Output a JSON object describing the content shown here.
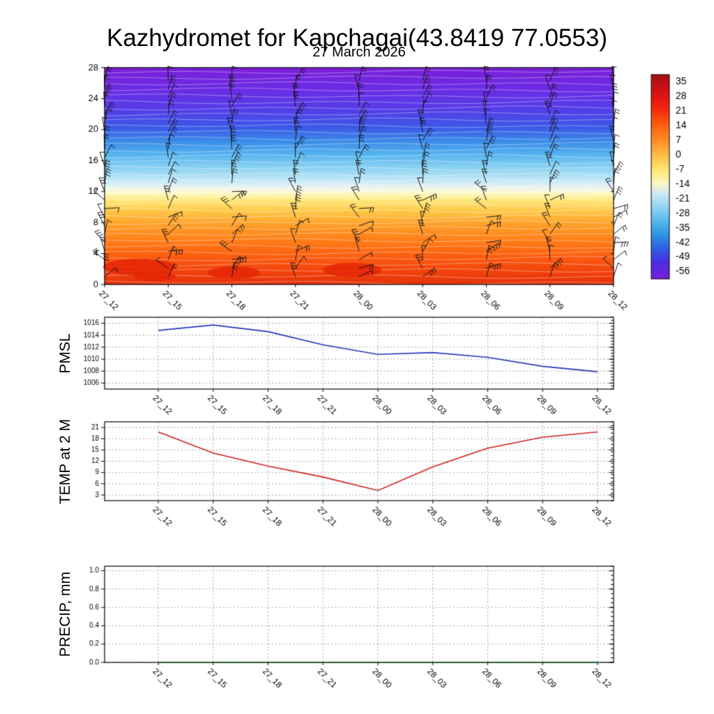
{
  "title": "Kazhydromet for Kapchagai(43.8419 77.0553)",
  "subtitle": "27 March 2026",
  "time_labels": [
    "27_12",
    "27_15",
    "27_18",
    "27_21",
    "28_00",
    "28_03",
    "28_06",
    "28_09",
    "28_12"
  ],
  "style": {
    "axis_color": "#000000",
    "grid_color": "#999999",
    "contour_color": "rgba(255,255,255,0.55)",
    "barb_color": "#111111"
  },
  "chart_data": [
    {
      "type": "heatmap",
      "name": "upper-air-temperature-section",
      "title": "27 March 2026",
      "xlabel": "",
      "ylabel": "",
      "ylim": [
        0,
        28
      ],
      "yticks": [
        0,
        4,
        8,
        12,
        16,
        20,
        24,
        28
      ],
      "x_categories": [
        "27_12",
        "27_15",
        "27_18",
        "27_21",
        "28_00",
        "28_03",
        "28_06",
        "28_09",
        "28_12"
      ],
      "field_description": "Time-height temperature section with wind barbs at each time step: warm orange/red layer below ~11, pale yellow band near 12, light blue ~13-17, blue ~17-20, purple above ~21; small red warm cores near the surface.",
      "field_gradient": [
        {
          "pos": 0.0,
          "color": "#7c1fd8"
        },
        {
          "pos": 0.1,
          "color": "#6b2ce4"
        },
        {
          "pos": 0.2,
          "color": "#5340e8"
        },
        {
          "pos": 0.28,
          "color": "#3a5ce8"
        },
        {
          "pos": 0.34,
          "color": "#3b8ce8"
        },
        {
          "pos": 0.4,
          "color": "#55b4ee"
        },
        {
          "pos": 0.46,
          "color": "#8ad2f2"
        },
        {
          "pos": 0.52,
          "color": "#c2e8f8"
        },
        {
          "pos": 0.555,
          "color": "#eef6f0"
        },
        {
          "pos": 0.575,
          "color": "#fdfbd0"
        },
        {
          "pos": 0.61,
          "color": "#ffe97e"
        },
        {
          "pos": 0.66,
          "color": "#ffc94a"
        },
        {
          "pos": 0.72,
          "color": "#ffa22b"
        },
        {
          "pos": 0.8,
          "color": "#ff7d18"
        },
        {
          "pos": 0.88,
          "color": "#fb5a10"
        },
        {
          "pos": 0.95,
          "color": "#f0400c"
        },
        {
          "pos": 1.0,
          "color": "#e5320a"
        }
      ],
      "colorbar": {
        "ticks": [
          35,
          28,
          21,
          14,
          7,
          0,
          -7,
          -14,
          -21,
          -28,
          -35,
          -42,
          -49,
          -56
        ],
        "gradient": [
          {
            "pos": 0.0,
            "color": "#a30f14"
          },
          {
            "pos": 0.08,
            "color": "#d31016"
          },
          {
            "pos": 0.16,
            "color": "#f3230e"
          },
          {
            "pos": 0.24,
            "color": "#ff5a10"
          },
          {
            "pos": 0.32,
            "color": "#ff8c22"
          },
          {
            "pos": 0.4,
            "color": "#ffc04a"
          },
          {
            "pos": 0.47,
            "color": "#ffe878"
          },
          {
            "pos": 0.53,
            "color": "#fbf7c0"
          },
          {
            "pos": 0.58,
            "color": "#cfeaf6"
          },
          {
            "pos": 0.64,
            "color": "#9cd8f2"
          },
          {
            "pos": 0.71,
            "color": "#5cbcec"
          },
          {
            "pos": 0.78,
            "color": "#2f96e2"
          },
          {
            "pos": 0.85,
            "color": "#2e60e2"
          },
          {
            "pos": 0.92,
            "color": "#4a2ee0"
          },
          {
            "pos": 1.0,
            "color": "#7a1fd8"
          }
        ]
      },
      "wind_barbs": true
    },
    {
      "type": "line",
      "name": "pmsl-series",
      "ylabel": "PMSL",
      "x": [
        "27_12",
        "27_15",
        "27_18",
        "27_21",
        "28_00",
        "28_03",
        "28_06",
        "28_09",
        "28_12"
      ],
      "values": [
        1014.8,
        1015.7,
        1014.6,
        1012.4,
        1010.8,
        1011.1,
        1010.3,
        1008.8,
        1007.9
      ],
      "ylim": [
        1005,
        1017
      ],
      "yticks": [
        1006,
        1008,
        1010,
        1012,
        1014,
        1016
      ],
      "ytick_labels": [
        "1006",
        "1008",
        "1010",
        "1012",
        "1014",
        "1016"
      ],
      "yminor": 0.5,
      "color": "#2233bb",
      "grid": "dotted"
    },
    {
      "type": "line",
      "name": "temp-2m-series",
      "ylabel": "TEMP at 2 M",
      "x": [
        "27_12",
        "27_15",
        "27_18",
        "27_21",
        "28_00",
        "28_03",
        "28_06",
        "28_09",
        "28_12"
      ],
      "values": [
        19.8,
        14.2,
        10.7,
        7.8,
        4.2,
        10.5,
        15.5,
        18.4,
        19.8
      ],
      "ylim": [
        1.5,
        22.5
      ],
      "yticks": [
        3,
        6,
        9,
        12,
        15,
        18,
        21
      ],
      "ytick_labels": [
        "3",
        "6",
        "9",
        "12",
        "15",
        "18",
        "21"
      ],
      "yminor": 1,
      "color": "#cc2020",
      "grid": "dotted"
    },
    {
      "type": "line",
      "name": "precip-series",
      "ylabel": "PRECIP, mm",
      "x": [
        "27_12",
        "27_15",
        "27_18",
        "27_21",
        "28_00",
        "28_03",
        "28_06",
        "28_09",
        "28_12"
      ],
      "values": [
        0,
        0,
        0,
        0,
        0,
        0,
        0,
        0,
        0
      ],
      "ylim": [
        0,
        1.05
      ],
      "yticks": [
        0,
        0.2,
        0.4,
        0.6,
        0.8,
        1.0
      ],
      "ytick_labels": [
        "0.0",
        "0.2",
        "0.4",
        "0.6",
        "0.8",
        "1.0"
      ],
      "yminor": 0.05,
      "color": "#145a1e",
      "grid": "dotted"
    }
  ]
}
